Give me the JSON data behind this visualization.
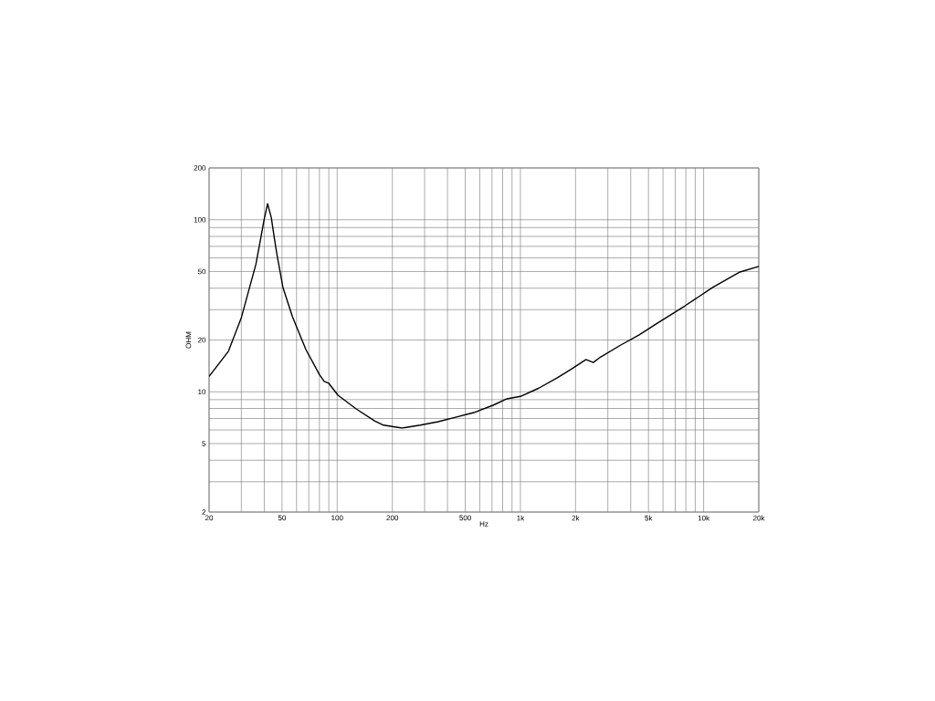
{
  "chart_data": {
    "type": "line",
    "xlabel": "Hz",
    "ylabel": "OHM",
    "log": "xy",
    "grid": true,
    "marker": "none",
    "line_style": "solid",
    "xlim": [
      20,
      20000
    ],
    "ylim": [
      2,
      200
    ],
    "xticks": [
      20,
      {
        "value": 30,
        "label": null
      },
      {
        "value": 40,
        "label": null
      },
      50,
      {
        "value": 60,
        "label": null
      },
      {
        "value": 70,
        "label": null
      },
      {
        "value": 80,
        "label": null
      },
      {
        "value": 90,
        "label": null
      },
      100,
      200,
      {
        "value": 300,
        "label": null
      },
      {
        "value": 400,
        "label": null
      },
      500,
      {
        "value": 600,
        "label": null
      },
      {
        "value": 700,
        "label": null
      },
      {
        "value": 800,
        "label": null
      },
      {
        "value": 900,
        "label": null
      },
      {
        "value": 1000,
        "label": "1k"
      },
      {
        "value": 2000,
        "label": "2k"
      },
      {
        "value": 3000,
        "label": null
      },
      {
        "value": 4000,
        "label": null
      },
      {
        "value": 5000,
        "label": "5k"
      },
      {
        "value": 6000,
        "label": null
      },
      {
        "value": 7000,
        "label": null
      },
      {
        "value": 8000,
        "label": null
      },
      {
        "value": 9000,
        "label": null
      },
      {
        "value": 10000,
        "label": "10k"
      },
      {
        "value": 20000,
        "label": "20k"
      }
    ],
    "yticks": [
      2,
      {
        "value": 3,
        "label": null
      },
      {
        "value": 4,
        "label": null
      },
      5,
      {
        "value": 6,
        "label": null
      },
      {
        "value": 7,
        "label": null
      },
      {
        "value": 8,
        "label": null
      },
      {
        "value": 9,
        "label": null
      },
      10,
      20,
      {
        "value": 30,
        "label": null
      },
      {
        "value": 40,
        "label": null
      },
      50,
      {
        "value": 60,
        "label": null
      },
      {
        "value": 70,
        "label": null
      },
      {
        "value": 80,
        "label": null
      },
      {
        "value": 90,
        "label": null
      },
      100,
      200
    ],
    "x": [
      20,
      25.5,
      30,
      36,
      38,
      40,
      41.7,
      43.7,
      45.5,
      47,
      50.6,
      57,
      67.5,
      80,
      85,
      90,
      101,
      127,
      160,
      179,
      226,
      284,
      356,
      448,
      564,
      709,
      843,
      1000,
      1260,
      1590,
      1890,
      2280,
      2500,
      2730,
      3530,
      4450,
      5610,
      7920,
      11200,
      15800,
      20000
    ],
    "series": [
      {
        "color": "#000000",
        "values": [
          12.3,
          17.2,
          27,
          55,
          75,
          101,
          124,
          103,
          77,
          62,
          40.4,
          27.3,
          17.6,
          12.6,
          11.5,
          11.2,
          9.55,
          7.95,
          6.78,
          6.4,
          6.15,
          6.4,
          6.7,
          7.13,
          7.6,
          8.35,
          9.1,
          9.4,
          10.5,
          12.05,
          13.5,
          15.4,
          14.8,
          15.9,
          18.7,
          21.4,
          25.1,
          31.6,
          40.4,
          49.7,
          53.5
        ]
      }
    ]
  }
}
